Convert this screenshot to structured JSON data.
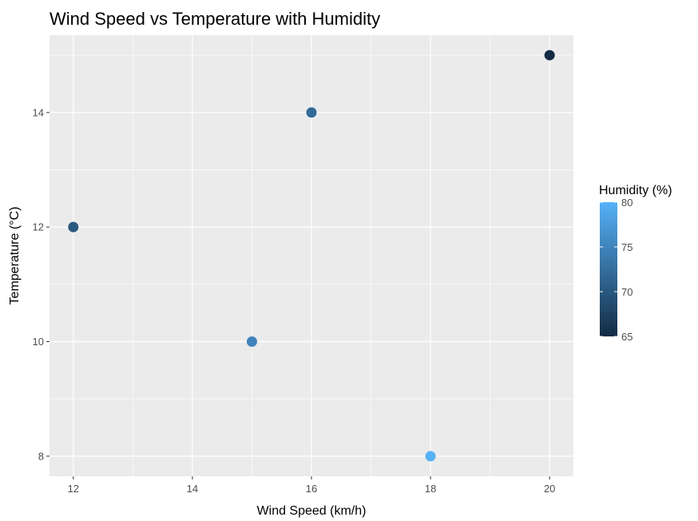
{
  "chart_data": {
    "type": "scatter",
    "title": "Wind Speed vs Temperature with Humidity",
    "xlabel": "Wind Speed (km/h)",
    "ylabel": "Temperature (°C)",
    "xlim": [
      11.6,
      20.4
    ],
    "ylim": [
      7.65,
      15.35
    ],
    "x_ticks": [
      12,
      14,
      16,
      18,
      20
    ],
    "x_minor_ticks": [
      13,
      15,
      17,
      19
    ],
    "y_ticks": [
      8,
      10,
      12,
      14
    ],
    "y_minor_ticks": [
      9,
      11,
      13,
      15
    ],
    "x_tick_labels": [
      "12",
      "14",
      "16",
      "18",
      "20"
    ],
    "y_tick_labels": [
      "8",
      "10",
      "12",
      "14"
    ],
    "grid": true,
    "points": [
      {
        "x": 12,
        "y": 12,
        "humidity": 70
      },
      {
        "x": 15,
        "y": 10,
        "humidity": 75
      },
      {
        "x": 16,
        "y": 14,
        "humidity": 72
      },
      {
        "x": 18,
        "y": 8,
        "humidity": 80
      },
      {
        "x": 20,
        "y": 15,
        "humidity": 65
      }
    ],
    "color_scale": {
      "title": "Humidity (%)",
      "min": 65,
      "max": 80,
      "low_color": "#132b43",
      "high_color": "#56b1f7",
      "ticks": [
        65,
        70,
        75,
        80
      ],
      "tick_labels": [
        "65",
        "70",
        "75",
        "80"
      ]
    },
    "legend_position": "right",
    "panel_background": "#ebebeb",
    "grid_color": "#ffffff"
  }
}
